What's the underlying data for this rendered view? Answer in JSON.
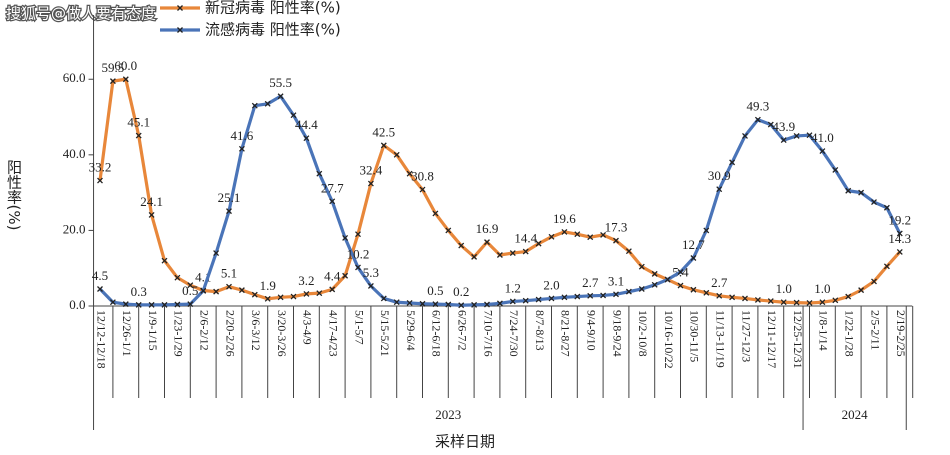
{
  "chart_data": {
    "type": "line",
    "watermark": "搜狐号@做人要有态度",
    "x_label": "采样日期",
    "y_label": "阳性率(%)",
    "categories": [
      "12/12-12/18",
      null,
      "12/26-1/1",
      null,
      "1/9-1/15",
      null,
      "1/23-1/29",
      null,
      "2/6-2/12",
      null,
      "2/20-2/26",
      null,
      "3/6-3/12",
      null,
      "3/20-3/26",
      null,
      "4/3-4/9",
      null,
      "4/17-4/23",
      null,
      "5/1-5/7",
      null,
      "5/15-5/21",
      null,
      "5/29-6/4",
      null,
      "6/12-6/18",
      null,
      "6/26-7/2",
      null,
      "7/10-7/16",
      null,
      "7/24-7/30",
      null,
      "8/7-8/13",
      null,
      "8/21-8/27",
      null,
      "9/4-9/10",
      null,
      "9/18-9/24",
      null,
      "10/2-10/8",
      null,
      "10/16-10/22",
      null,
      "10/30-11/5",
      null,
      "11/13-11/19",
      null,
      "11/27-12/3",
      null,
      "12/11-12/17",
      null,
      "12/25-12/31",
      null,
      "1/8-1/14",
      null,
      "1/22-1/28",
      null,
      "2/5-2/11",
      null,
      "2/19-2/25"
    ],
    "groups": [
      {
        "label": "2023",
        "count": 55
      },
      {
        "label": "2024",
        "count": 8
      }
    ],
    "series": [
      {
        "name": "新冠病毒 阳性率(%)",
        "color": "#e8873a",
        "values": [
          33.2,
          59.5,
          60.0,
          45.1,
          24.1,
          12,
          7.5,
          5.5,
          4.1,
          3.8,
          5.1,
          4.2,
          3.0,
          1.9,
          2.3,
          2.5,
          3.2,
          3.4,
          4.4,
          8,
          19,
          32.4,
          42.5,
          40,
          35,
          30.8,
          24.5,
          20,
          16,
          13,
          16.9,
          13.5,
          14,
          14.4,
          16.5,
          18.3,
          19.6,
          19,
          18.2,
          18.8,
          17.3,
          14.5,
          10.4,
          8.5,
          7,
          5.4,
          4.3,
          3.5,
          2.7,
          2.3,
          2.0,
          1.6,
          1.3,
          1.0,
          0.9,
          0.8,
          1.0,
          1.5,
          2.5,
          4.2,
          6.5,
          10.5,
          14.3
        ],
        "value_labels": [
          "33.2",
          "59.5",
          "60.0",
          "45.1",
          "24.1",
          null,
          null,
          null,
          "4.1",
          null,
          "5.1",
          null,
          null,
          "1.9",
          null,
          null,
          "3.2",
          null,
          "4.4",
          null,
          null,
          "32.4",
          "42.5",
          null,
          null,
          "30.8",
          null,
          null,
          null,
          null,
          "16.9",
          null,
          null,
          "14.4",
          null,
          null,
          "19.6",
          null,
          null,
          null,
          "17.3",
          null,
          null,
          null,
          null,
          "5.4",
          null,
          null,
          "2.7",
          null,
          null,
          null,
          null,
          "1.0",
          null,
          null,
          "1.0",
          null,
          null,
          null,
          null,
          null,
          "14.3"
        ]
      },
      {
        "name": "流感病毒 阳性率(%)",
        "color": "#4a74b8",
        "values": [
          4.5,
          1.0,
          0.5,
          0.3,
          0.3,
          0.3,
          0.4,
          0.5,
          4,
          14,
          25.1,
          41.6,
          53,
          53.5,
          55.5,
          50.5,
          44.4,
          35,
          27.7,
          18,
          10.2,
          5.3,
          2.0,
          1.0,
          0.8,
          0.6,
          0.5,
          0.4,
          0.2,
          0.3,
          0.4,
          0.7,
          1.2,
          1.4,
          1.7,
          2.0,
          2.3,
          2.5,
          2.7,
          2.8,
          3.1,
          3.8,
          4.5,
          5.6,
          7,
          9,
          12.7,
          20,
          30.9,
          38,
          45,
          49.3,
          48,
          43.9,
          45.0,
          45.2,
          41.0,
          36,
          30.5,
          30,
          27.5,
          26,
          19.2
        ],
        "value_labels": [
          "4.5",
          null,
          null,
          "0.3",
          null,
          null,
          null,
          "0.5",
          null,
          null,
          "25.1",
          "41.6",
          null,
          null,
          "55.5",
          null,
          "44.4",
          null,
          "27.7",
          null,
          "10.2",
          "5.3",
          null,
          null,
          null,
          null,
          "0.5",
          null,
          "0.2",
          null,
          null,
          null,
          "1.2",
          null,
          null,
          "2.0",
          null,
          null,
          "2.7",
          null,
          "3.1",
          null,
          null,
          null,
          null,
          null,
          "12.7",
          null,
          "30.9",
          null,
          null,
          "49.3",
          null,
          "43.9",
          null,
          null,
          "41.0",
          null,
          null,
          null,
          null,
          null,
          "19.2"
        ]
      }
    ],
    "ylim": [
      0,
      77
    ],
    "yticks": [
      {
        "value": 0,
        "label": "0.0"
      },
      {
        "value": 20,
        "label": "20.0"
      },
      {
        "value": 40,
        "label": "40.0"
      },
      {
        "value": 60,
        "label": "60.0"
      }
    ],
    "legend": "top",
    "grid": false,
    "marker_color": "#222222"
  }
}
